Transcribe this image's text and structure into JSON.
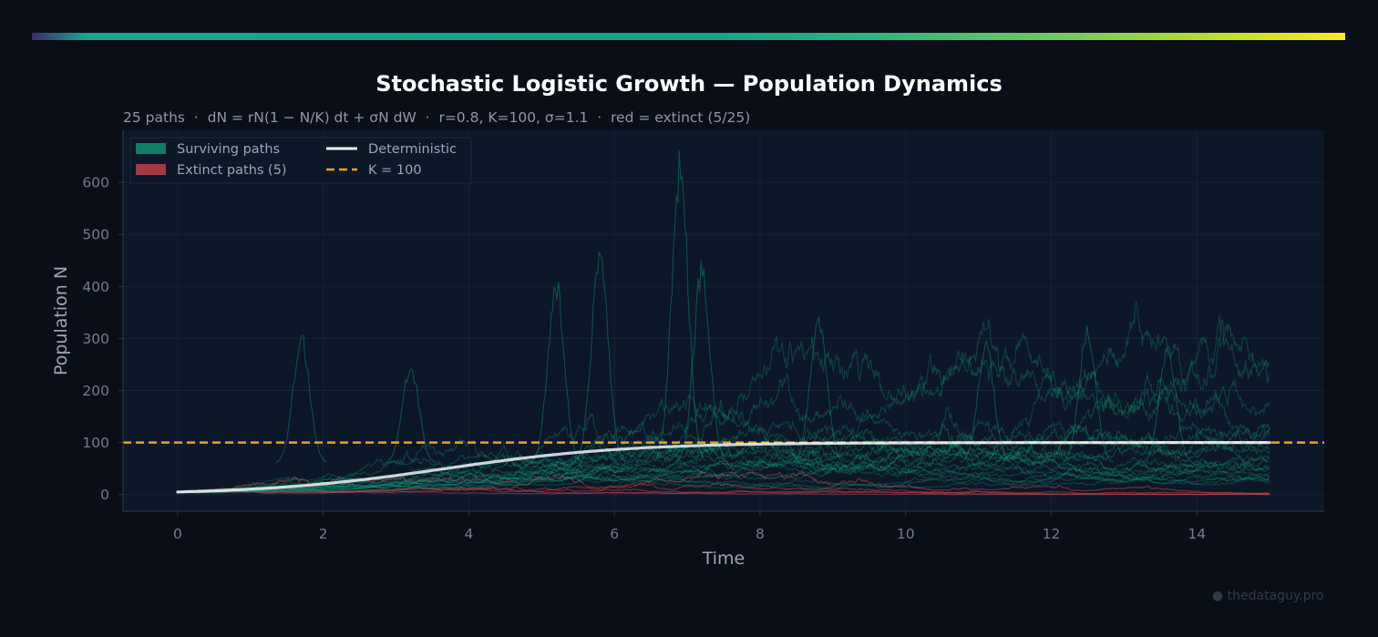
{
  "chart_data": {
    "type": "line",
    "title": "Stochastic Logistic Growth — Population Dynamics",
    "subtitle": "25 paths  ·  dN = rN(1 − N/K) dt + σN dW  ·  r=0.8, K=100, σ=1.1  ·  red = extinct (5/25)",
    "xlabel": "Time",
    "ylabel": "Population N",
    "xlim": [
      -0.75,
      15.75
    ],
    "ylim": [
      -32,
      700
    ],
    "xticks": [
      0,
      2,
      4,
      6,
      8,
      10,
      12,
      14
    ],
    "yticks": [
      0,
      100,
      200,
      300,
      400,
      500,
      600
    ],
    "grid": true,
    "legend_position": "top-left",
    "legend": [
      {
        "label": "Surviving paths",
        "kind": "patch",
        "color": "#14a07c"
      },
      {
        "label": "Extinct paths (5)",
        "kind": "patch",
        "color": "#c0404a"
      },
      {
        "label": "Deterministic",
        "kind": "line",
        "color": "#f2f4f8"
      },
      {
        "label": "K = 100",
        "kind": "dashed",
        "color": "#f0a020"
      }
    ],
    "params": {
      "paths": 25,
      "r": 0.8,
      "K": 100,
      "sigma": 1.1,
      "N0": 5,
      "t_end": 15,
      "extinct_count": 5
    },
    "reference_line": {
      "name": "K = 100",
      "y": 100
    },
    "series": [
      {
        "name": "Deterministic",
        "x": [
          0,
          1,
          2,
          3,
          4,
          5,
          6,
          7,
          8,
          9,
          10,
          11,
          12,
          13,
          14,
          15
        ],
        "values": [
          5,
          10.5,
          21.4,
          37.7,
          57.3,
          74.9,
          86.8,
          93.7,
          97.0,
          98.6,
          99.3,
          99.7,
          99.9,
          99.9,
          100,
          100
        ]
      }
    ],
    "surviving_path_peaks": [
      {
        "x": 1.7,
        "y": 320
      },
      {
        "x": 3.2,
        "y": 260
      },
      {
        "x": 5.2,
        "y": 425
      },
      {
        "x": 5.8,
        "y": 490
      },
      {
        "x": 6.9,
        "y": 665
      },
      {
        "x": 7.2,
        "y": 455
      },
      {
        "x": 8.8,
        "y": 365
      },
      {
        "x": 11.1,
        "y": 300
      },
      {
        "x": 12.5,
        "y": 330
      },
      {
        "x": 13.6,
        "y": 295
      }
    ]
  },
  "colors": {
    "background": "#0a0e17",
    "plot_background": "#0c1727",
    "surviving": "#14a07c",
    "extinct": "#c0404a",
    "deterministic": "#f2f4f8",
    "capacity": "#f0a020"
  },
  "watermark": "● thedataguy.pro"
}
